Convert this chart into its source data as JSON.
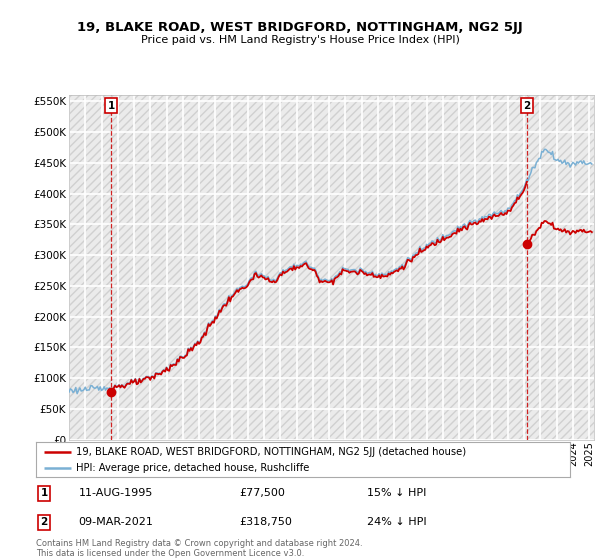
{
  "title": "19, BLAKE ROAD, WEST BRIDGFORD, NOTTINGHAM, NG2 5JJ",
  "subtitle": "Price paid vs. HM Land Registry's House Price Index (HPI)",
  "annotation1": {
    "label": "1",
    "date_str": "11-AUG-1995",
    "price_str": "£77,500",
    "hpi_str": "15% ↓ HPI"
  },
  "annotation2": {
    "label": "2",
    "date_str": "09-MAR-2021",
    "price_str": "£318,750",
    "hpi_str": "24% ↓ HPI"
  },
  "legend_red": "19, BLAKE ROAD, WEST BRIDGFORD, NOTTINGHAM, NG2 5JJ (detached house)",
  "legend_blue": "HPI: Average price, detached house, Rushcliffe",
  "footer": "Contains HM Land Registry data © Crown copyright and database right 2024.\nThis data is licensed under the Open Government Licence v3.0.",
  "red_color": "#cc0000",
  "blue_color": "#7ab0d4",
  "background_color": "#ebebeb",
  "grid_color": "#ffffff",
  "sale1_year": 1995.6,
  "sale1_price": 77500,
  "sale2_year": 2021.18,
  "sale2_price": 318750,
  "ylim": [
    0,
    560000
  ],
  "yticks": [
    0,
    50000,
    100000,
    150000,
    200000,
    250000,
    300000,
    350000,
    400000,
    450000,
    500000,
    550000
  ],
  "xlim_start": 1993,
  "xlim_end": 2025.3
}
